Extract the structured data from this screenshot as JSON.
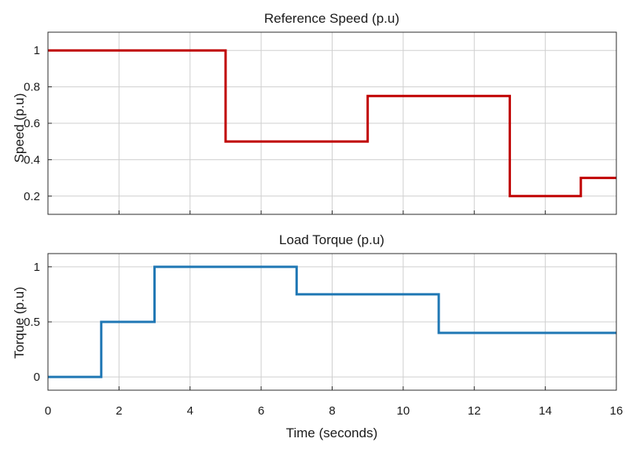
{
  "chart_data": [
    {
      "type": "line",
      "title": "Reference Speed (p.u)",
      "xlabel": "",
      "ylabel": "Speed (p.u)",
      "xlim": [
        0,
        16
      ],
      "ylim": [
        0.1,
        1.1
      ],
      "xticks": [
        0,
        2,
        4,
        6,
        8,
        10,
        12,
        14,
        16
      ],
      "xtick_labels_visible": false,
      "yticks": [
        0.2,
        0.4,
        0.6,
        0.8,
        1
      ],
      "ytick_labels": [
        "0.2",
        "0.4",
        "0.6",
        "0.8",
        "1"
      ],
      "grid": true,
      "series": [
        {
          "color": "#c00000",
          "step": true,
          "x": [
            0,
            5,
            9,
            13,
            15,
            16
          ],
          "y": [
            1,
            0.5,
            0.75,
            0.2,
            0.3,
            0.3
          ]
        }
      ]
    },
    {
      "type": "line",
      "title": "Load Torque (p.u)",
      "xlabel": "Time (seconds)",
      "ylabel": "Torque (p.u)",
      "xlim": [
        0,
        16
      ],
      "ylim": [
        -0.12,
        1.12
      ],
      "xticks": [
        0,
        2,
        4,
        6,
        8,
        10,
        12,
        14,
        16
      ],
      "xtick_labels": [
        "0",
        "2",
        "4",
        "6",
        "8",
        "10",
        "12",
        "14",
        "16"
      ],
      "yticks": [
        0,
        0.5,
        1
      ],
      "ytick_labels": [
        "0",
        "0.5",
        "1"
      ],
      "grid": true,
      "series": [
        {
          "color": "#1f77b4",
          "step": true,
          "x": [
            0,
            1.5,
            3,
            7,
            11,
            16
          ],
          "y": [
            0,
            0.5,
            1,
            0.75,
            0.4,
            0.4
          ]
        }
      ]
    }
  ]
}
